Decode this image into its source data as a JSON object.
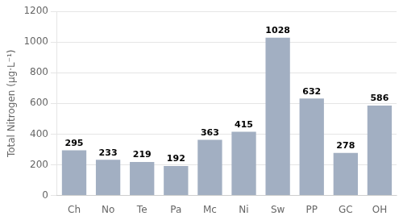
{
  "chart_data": {
    "type": "bar",
    "ylabel": "Total Nitrogen (μg·L⁻¹)",
    "categories": [
      "Ch",
      "No",
      "Te",
      "Pa",
      "Mc",
      "Ni",
      "Sw",
      "PP",
      "GC",
      "OH"
    ],
    "values": [
      295,
      233,
      219,
      192,
      363,
      415,
      1028,
      632,
      278,
      586
    ],
    "color": "#a2afc2",
    "ylim": [
      0,
      1200
    ],
    "yticks": [
      0,
      200,
      400,
      600,
      800,
      1000,
      1200
    ],
    "grid": true,
    "data_labels": true
  }
}
